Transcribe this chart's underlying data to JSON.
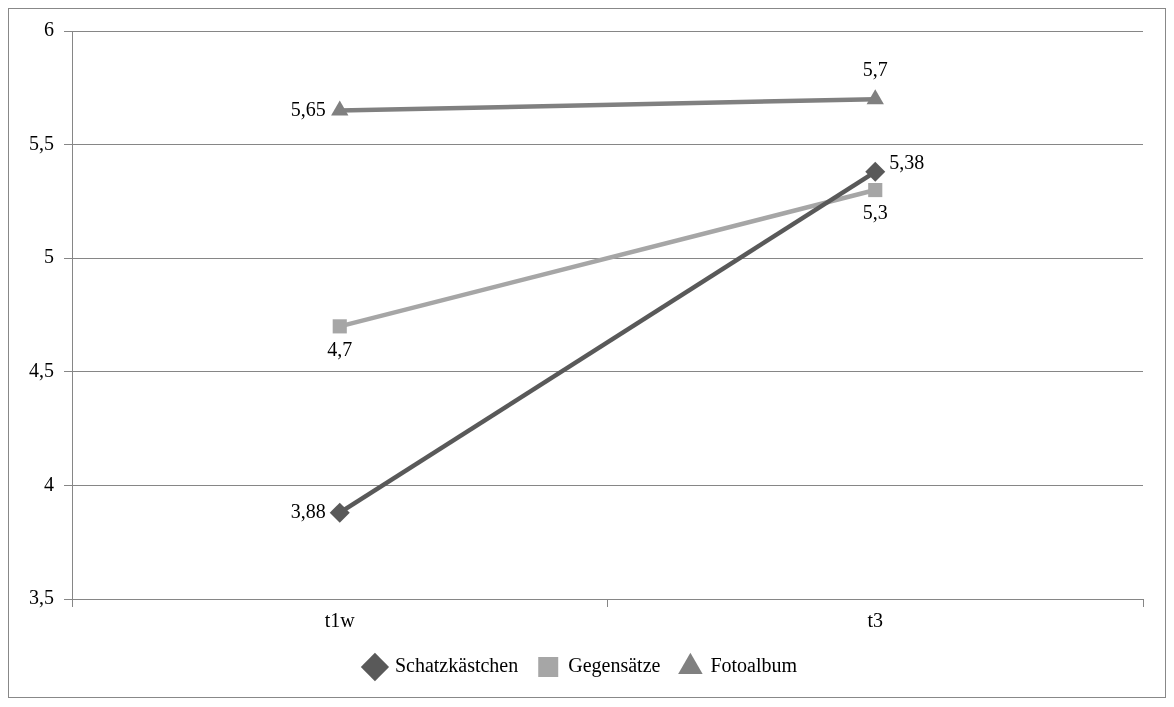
{
  "chart_data": {
    "type": "line",
    "categories": [
      "t1w",
      "t3"
    ],
    "series": [
      {
        "name": "Schatzkästchen",
        "color": "#595959",
        "marker": "diamond",
        "values": [
          3.88,
          5.38
        ],
        "value_labels": [
          "3,88",
          "5,38"
        ]
      },
      {
        "name": "Gegensätze",
        "color": "#a6a6a6",
        "marker": "square",
        "values": [
          4.7,
          5.3
        ],
        "value_labels": [
          "4,7",
          "5,3"
        ]
      },
      {
        "name": "Fotoalbum",
        "color": "#808080",
        "marker": "triangle",
        "values": [
          5.65,
          5.7
        ],
        "value_labels": [
          "5,65",
          "5,7"
        ]
      }
    ],
    "ylim": [
      3.5,
      6
    ],
    "yticks": [
      {
        "value": 3.5,
        "label": "3,5"
      },
      {
        "value": 4,
        "label": "4"
      },
      {
        "value": 4.5,
        "label": "4,5"
      },
      {
        "value": 5,
        "label": "5"
      },
      {
        "value": 5.5,
        "label": "5,5"
      },
      {
        "value": 6,
        "label": "6"
      }
    ],
    "grid": "y",
    "legend": "bottom",
    "line_style": "solid"
  }
}
